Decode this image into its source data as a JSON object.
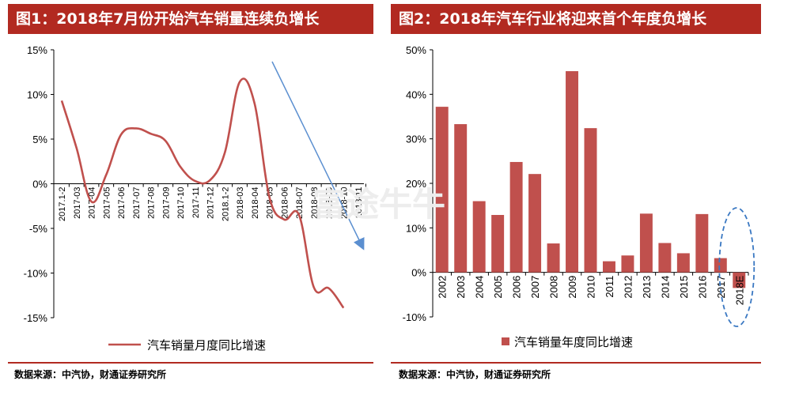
{
  "chart_data": [
    {
      "type": "line",
      "title": "图1：2018年7月份开始汽车销量连续负增长",
      "categories": [
        "2017.1-2",
        "2017-03",
        "2017-04",
        "2017-05",
        "2017-06",
        "2017-07",
        "2017-08",
        "2017-09",
        "2017-10",
        "2017-11",
        "2017-12",
        "2018.1-2",
        "2018-03",
        "2018-04",
        "2018-05",
        "2018-06",
        "2018-07",
        "2018-08",
        "2018-09",
        "2018-10",
        "2018-11"
      ],
      "series": [
        {
          "name": "汽车销量月度同比增速",
          "values": [
            9.3,
            4.0,
            -2.0,
            1.0,
            5.5,
            6.2,
            5.6,
            4.8,
            1.9,
            0.3,
            0.4,
            3.5,
            11.4,
            9.0,
            -1.5,
            -4.0,
            -3.5,
            -11.6,
            -11.7,
            -13.9,
            null
          ],
          "color": "#c0504d"
        }
      ],
      "ylim": [
        -15,
        15
      ],
      "yticks": [
        "15%",
        "10%",
        "5%",
        "0%",
        "-5%",
        "-10%",
        "-15%"
      ],
      "annotation": "trend-arrow",
      "arrow_color": "#5b8fd0",
      "legend_position": "bottom",
      "source": "数据来源：中汽协，财通证券研究所"
    },
    {
      "type": "bar",
      "title": "图2：2018年汽车行业将迎来首个年度负增长",
      "categories": [
        "2002",
        "2003",
        "2004",
        "2005",
        "2006",
        "2007",
        "2008",
        "2009",
        "2010",
        "2011",
        "2012",
        "2013",
        "2014",
        "2015",
        "2016",
        "2017",
        "2018E"
      ],
      "series": [
        {
          "name": "汽车销量年度同比增速",
          "values": [
            37.2,
            33.3,
            16.0,
            12.9,
            24.8,
            22.1,
            6.5,
            45.2,
            32.4,
            2.5,
            3.8,
            13.2,
            6.6,
            4.3,
            13.1,
            3.2,
            -3.5
          ],
          "color": "#c0504d"
        }
      ],
      "ylim": [
        -10,
        50
      ],
      "yticks": [
        "50%",
        "40%",
        "30%",
        "20%",
        "10%",
        "0%",
        "-10%"
      ],
      "annotation": "dashed-ellipse-2018E",
      "ellipse_color": "#3a78c2",
      "legend_position": "bottom",
      "source": "数据来源：中汽协，财通证券研究所"
    }
  ],
  "watermark": "富途牛牛"
}
